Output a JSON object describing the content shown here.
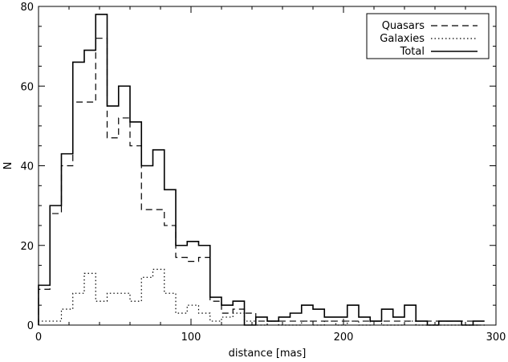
{
  "chart_data": {
    "type": "line",
    "title": "",
    "xlabel": "distance [mas]",
    "ylabel": "N",
    "xlim": [
      0,
      300
    ],
    "ylim": [
      0,
      80
    ],
    "x_ticks": [
      "0",
      "100",
      "200",
      "300"
    ],
    "y_ticks": [
      "0",
      "20",
      "40",
      "60",
      "80"
    ],
    "grid": false,
    "legend_position": "top-right",
    "bin_width": 7.5,
    "bin_start": 0,
    "series": [
      {
        "name": "Quasars",
        "style": "dashed",
        "values": [
          9,
          28,
          40,
          56,
          56,
          72,
          47,
          52,
          45,
          29,
          29,
          25,
          17,
          16,
          17,
          6,
          3,
          4,
          3,
          1,
          1,
          1,
          1,
          1,
          1,
          1,
          1,
          1,
          1,
          1,
          1,
          1,
          1,
          1,
          1,
          1,
          1,
          1,
          0
        ]
      },
      {
        "name": "Galaxies",
        "style": "dotted",
        "values": [
          1,
          1,
          4,
          8,
          13,
          6,
          8,
          8,
          6,
          12,
          14,
          8,
          3,
          5,
          3,
          1,
          2,
          3,
          1,
          0,
          1,
          0,
          0,
          1,
          0,
          1,
          0,
          1,
          0,
          1,
          0,
          0,
          1,
          0,
          0,
          0,
          0,
          0,
          0
        ]
      },
      {
        "name": "Total",
        "style": "solid",
        "values": [
          10,
          30,
          43,
          66,
          69,
          78,
          55,
          60,
          51,
          40,
          44,
          34,
          20,
          21,
          20,
          7,
          5,
          6,
          0,
          2,
          1,
          2,
          3,
          5,
          4,
          2,
          2,
          5,
          2,
          1,
          4,
          2,
          5,
          1,
          0,
          1,
          1,
          0,
          1
        ]
      }
    ]
  }
}
